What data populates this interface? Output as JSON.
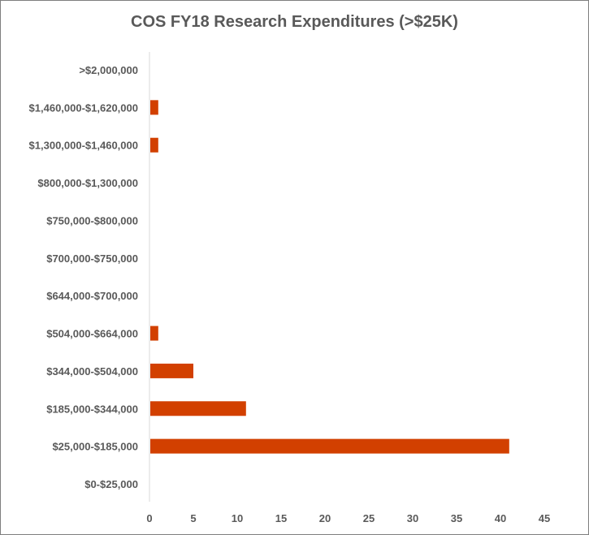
{
  "chart_data": {
    "type": "bar",
    "orientation": "horizontal",
    "title": "COS FY18 Research Expenditures (>$25K)",
    "xlabel": "",
    "ylabel": "",
    "categories": [
      "$0-$25,000",
      "$25,000-$185,000",
      "$185,000-$344,000",
      "$344,000-$504,000",
      "$504,000-$664,000",
      "$644,000-$700,000",
      "$700,000-$750,000",
      "$750,000-$800,000",
      "$800,000-$1,300,000",
      "$1,300,000-$1,460,000",
      "$1,460,000-$1,620,000",
      ">$2,000,000"
    ],
    "values": [
      0,
      41,
      11,
      5,
      1,
      0,
      0,
      0,
      0,
      1,
      1,
      0
    ],
    "xlim": [
      0,
      45
    ],
    "xticks": [
      0,
      5,
      10,
      15,
      20,
      25,
      30,
      35,
      40,
      45
    ],
    "grid": false,
    "legend": "none",
    "bar_color": "#d24000"
  }
}
